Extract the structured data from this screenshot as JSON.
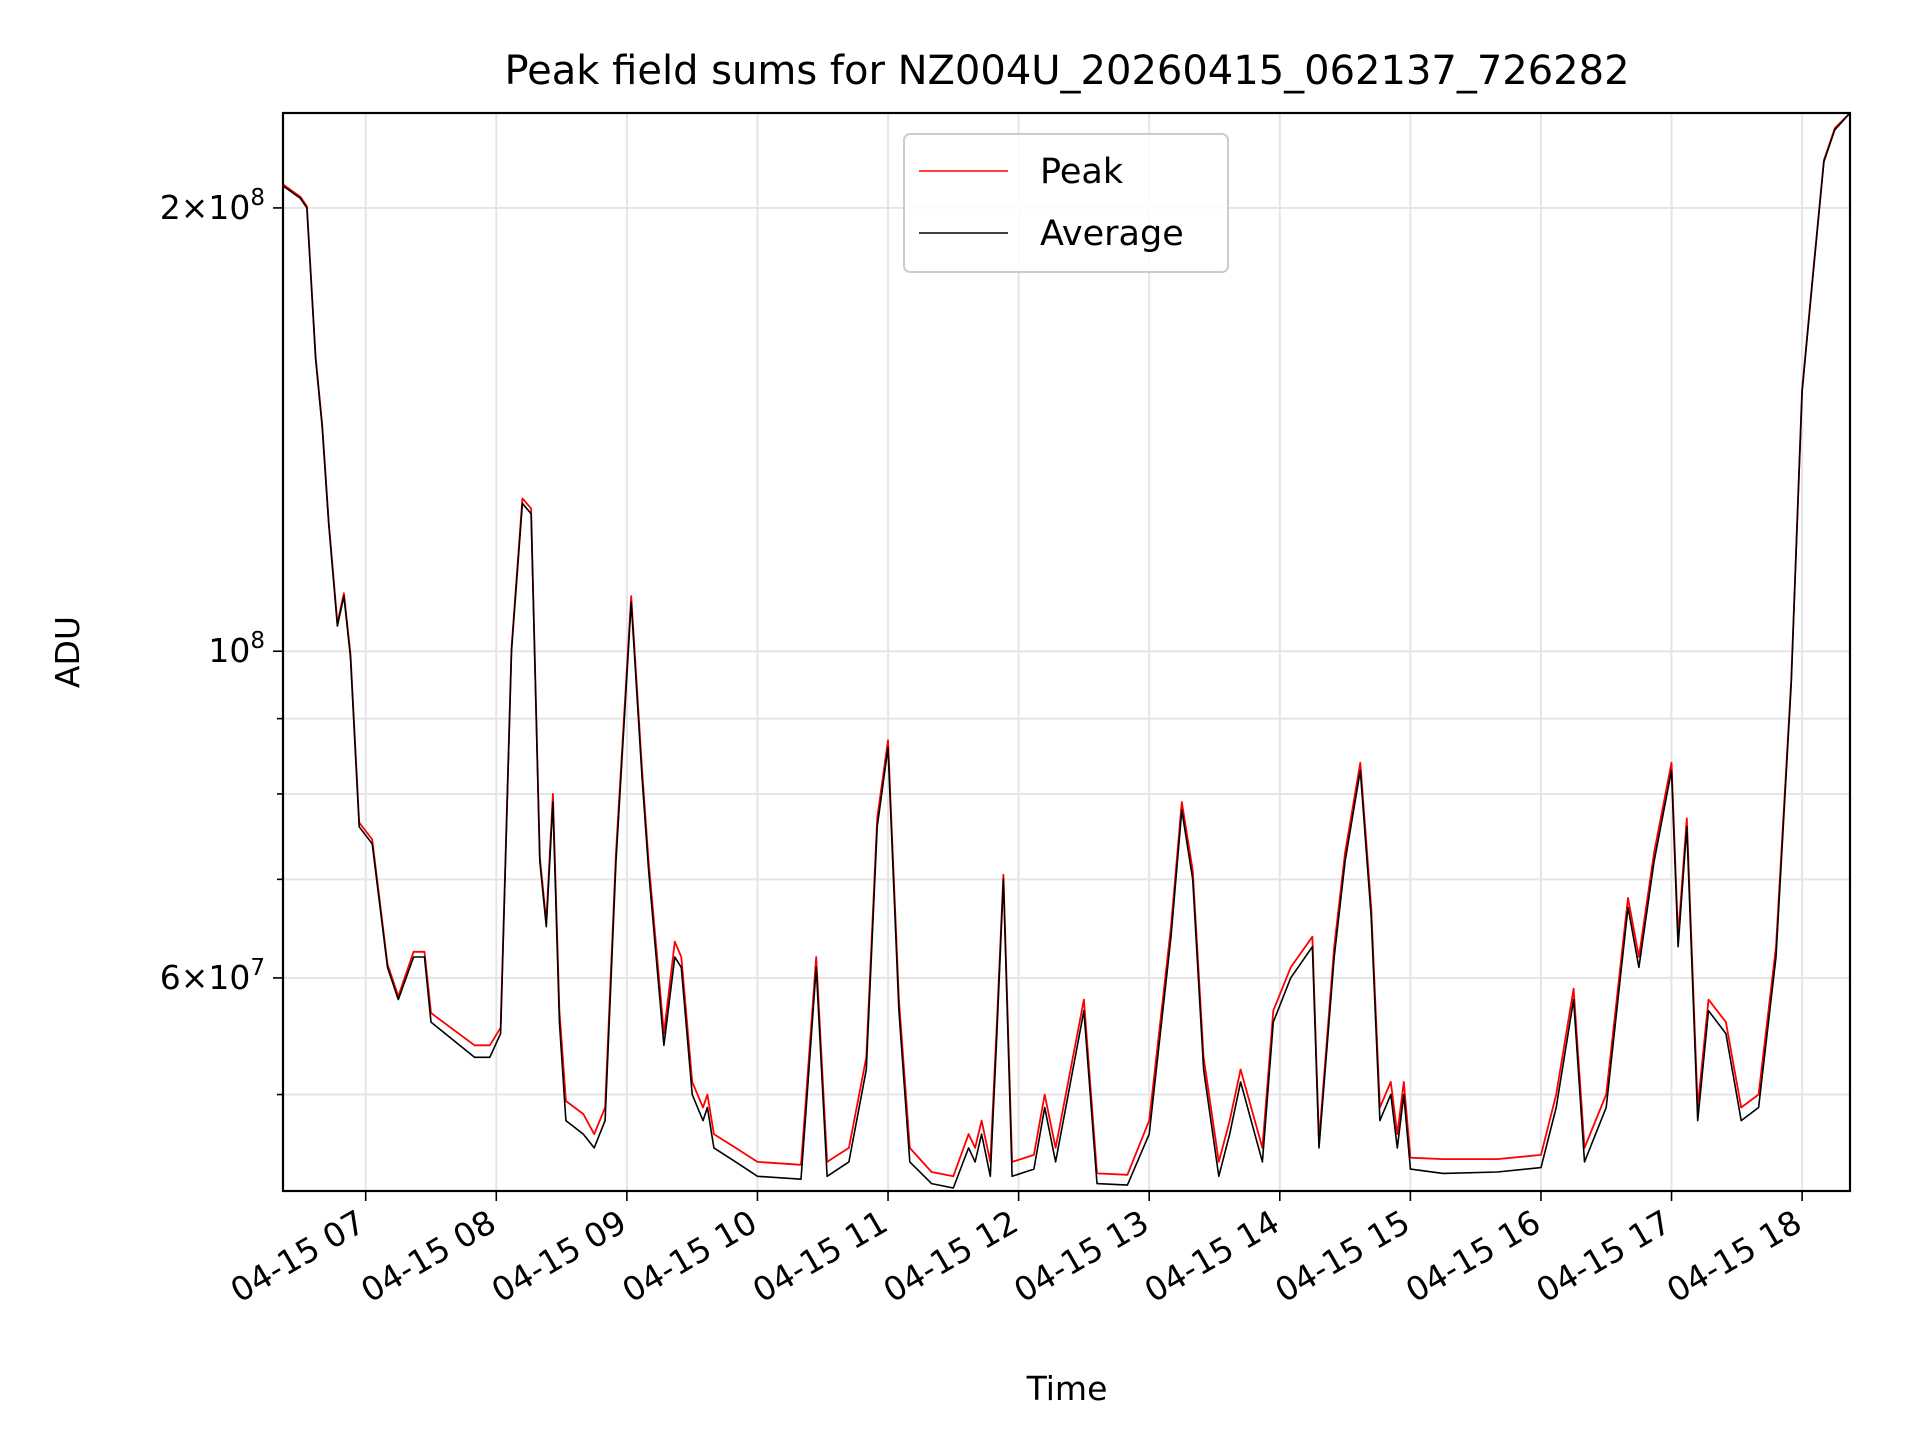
{
  "chart_data": {
    "type": "line",
    "title": "Peak field sums for NZ004U_20260415_062137_726282",
    "xlabel": "Time",
    "ylabel": "ADU",
    "y_scale": "log",
    "ylim": [
      43000000,
      232000000
    ],
    "xlim": [
      "2026-04-15 06:22",
      "2026-04-15 18:22"
    ],
    "grid": true,
    "legend_position": "upper center",
    "x_tick_labels": [
      "04-15 07",
      "04-15 08",
      "04-15 09",
      "04-15 10",
      "04-15 11",
      "04-15 12",
      "04-15 13",
      "04-15 14",
      "04-15 15",
      "04-15 16",
      "04-15 17",
      "04-15 18"
    ],
    "x_ticks": [
      "2026-04-15 07:00",
      "2026-04-15 08:00",
      "2026-04-15 09:00",
      "2026-04-15 10:00",
      "2026-04-15 11:00",
      "2026-04-15 12:00",
      "2026-04-15 13:00",
      "2026-04-15 14:00",
      "2026-04-15 15:00",
      "2026-04-15 16:00",
      "2026-04-15 17:00",
      "2026-04-15 18:00"
    ],
    "y_major_ticks": [
      {
        "value": 200000000,
        "mantissa": "2",
        "exp": "8"
      },
      {
        "value": 100000000,
        "mantissa": "",
        "exp": "8"
      },
      {
        "value": 60000000,
        "mantissa": "6",
        "exp": "7"
      }
    ],
    "y_minor_ticks": [
      50000000,
      70000000,
      80000000,
      90000000
    ],
    "colors": {
      "Peak": "#ff0000",
      "Average": "#000000"
    },
    "series": [
      {
        "name": "Average",
        "points": [
          [
            "2026-04-15 06:22",
            207000000
          ],
          [
            "2026-04-15 06:26",
            205000000
          ],
          [
            "2026-04-15 06:30",
            203000000
          ],
          [
            "2026-04-15 06:33",
            200000000
          ],
          [
            "2026-04-15 06:37",
            158000000
          ],
          [
            "2026-04-15 06:40",
            142000000
          ],
          [
            "2026-04-15 06:43",
            122000000
          ],
          [
            "2026-04-15 06:47",
            104000000
          ],
          [
            "2026-04-15 06:50",
            109000000
          ],
          [
            "2026-04-15 06:53",
            99000000
          ],
          [
            "2026-04-15 06:57",
            76000000
          ],
          [
            "2026-04-15 07:03",
            74000000
          ],
          [
            "2026-04-15 07:10",
            61000000
          ],
          [
            "2026-04-15 07:15",
            58000000
          ],
          [
            "2026-04-15 07:22",
            62000000
          ],
          [
            "2026-04-15 07:27",
            62000000
          ],
          [
            "2026-04-15 07:30",
            56000000
          ],
          [
            "2026-04-15 07:50",
            53000000
          ],
          [
            "2026-04-15 07:57",
            53000000
          ],
          [
            "2026-04-15 08:02",
            55000000
          ],
          [
            "2026-04-15 08:07",
            100000000
          ],
          [
            "2026-04-15 08:12",
            126000000
          ],
          [
            "2026-04-15 08:16",
            124000000
          ],
          [
            "2026-04-15 08:20",
            72000000
          ],
          [
            "2026-04-15 08:23",
            65000000
          ],
          [
            "2026-04-15 08:26",
            79000000
          ],
          [
            "2026-04-15 08:29",
            56000000
          ],
          [
            "2026-04-15 08:32",
            48000000
          ],
          [
            "2026-04-15 08:40",
            47000000
          ],
          [
            "2026-04-15 08:45",
            46000000
          ],
          [
            "2026-04-15 08:50",
            48000000
          ],
          [
            "2026-04-15 08:55",
            72000000
          ],
          [
            "2026-04-15 09:02",
            108000000
          ],
          [
            "2026-04-15 09:07",
            82000000
          ],
          [
            "2026-04-15 09:10",
            71000000
          ],
          [
            "2026-04-15 09:17",
            54000000
          ],
          [
            "2026-04-15 09:22",
            62000000
          ],
          [
            "2026-04-15 09:25",
            61000000
          ],
          [
            "2026-04-15 09:30",
            50000000
          ],
          [
            "2026-04-15 09:35",
            48000000
          ],
          [
            "2026-04-15 09:37",
            49000000
          ],
          [
            "2026-04-15 09:40",
            46000000
          ],
          [
            "2026-04-15 09:50",
            45000000
          ],
          [
            "2026-04-15 10:00",
            44000000
          ],
          [
            "2026-04-15 10:20",
            43800000
          ],
          [
            "2026-04-15 10:22",
            48000000
          ],
          [
            "2026-04-15 10:27",
            61000000
          ],
          [
            "2026-04-15 10:32",
            44000000
          ],
          [
            "2026-04-15 10:42",
            45000000
          ],
          [
            "2026-04-15 10:50",
            52000000
          ],
          [
            "2026-04-15 10:55",
            76000000
          ],
          [
            "2026-04-15 11:00",
            86000000
          ],
          [
            "2026-04-15 11:05",
            57000000
          ],
          [
            "2026-04-15 11:10",
            45000000
          ],
          [
            "2026-04-15 11:20",
            43500000
          ],
          [
            "2026-04-15 11:30",
            43200000
          ],
          [
            "2026-04-15 11:37",
            46000000
          ],
          [
            "2026-04-15 11:40",
            45000000
          ],
          [
            "2026-04-15 11:43",
            47000000
          ],
          [
            "2026-04-15 11:47",
            44000000
          ],
          [
            "2026-04-15 11:50",
            55000000
          ],
          [
            "2026-04-15 11:53",
            70000000
          ],
          [
            "2026-04-15 11:57",
            44000000
          ],
          [
            "2026-04-15 12:07",
            44500000
          ],
          [
            "2026-04-15 12:12",
            49000000
          ],
          [
            "2026-04-15 12:17",
            45000000
          ],
          [
            "2026-04-15 12:30",
            57000000
          ],
          [
            "2026-04-15 12:36",
            43500000
          ],
          [
            "2026-04-15 12:50",
            43400000
          ],
          [
            "2026-04-15 13:00",
            47000000
          ],
          [
            "2026-04-15 13:10",
            64000000
          ],
          [
            "2026-04-15 13:15",
            78000000
          ],
          [
            "2026-04-15 13:20",
            70000000
          ],
          [
            "2026-04-15 13:25",
            52000000
          ],
          [
            "2026-04-15 13:32",
            44000000
          ],
          [
            "2026-04-15 13:37",
            47000000
          ],
          [
            "2026-04-15 13:42",
            51000000
          ],
          [
            "2026-04-15 13:52",
            45000000
          ],
          [
            "2026-04-15 13:57",
            56000000
          ],
          [
            "2026-04-15 14:05",
            60000000
          ],
          [
            "2026-04-15 14:15",
            63000000
          ],
          [
            "2026-04-15 14:18",
            46000000
          ],
          [
            "2026-04-15 14:25",
            62000000
          ],
          [
            "2026-04-15 14:30",
            72000000
          ],
          [
            "2026-04-15 14:37",
            83000000
          ],
          [
            "2026-04-15 14:42",
            66000000
          ],
          [
            "2026-04-15 14:46",
            48000000
          ],
          [
            "2026-04-15 14:51",
            50000000
          ],
          [
            "2026-04-15 14:54",
            46000000
          ],
          [
            "2026-04-15 14:57",
            50000000
          ],
          [
            "2026-04-15 15:00",
            44500000
          ],
          [
            "2026-04-15 15:15",
            44200000
          ],
          [
            "2026-04-15 15:40",
            44300000
          ],
          [
            "2026-04-15 16:00",
            44600000
          ],
          [
            "2026-04-15 16:07",
            49000000
          ],
          [
            "2026-04-15 16:15",
            58000000
          ],
          [
            "2026-04-15 16:20",
            45000000
          ],
          [
            "2026-04-15 16:30",
            49000000
          ],
          [
            "2026-04-15 16:40",
            67000000
          ],
          [
            "2026-04-15 16:45",
            61000000
          ],
          [
            "2026-04-15 16:52",
            72000000
          ],
          [
            "2026-04-15 17:00",
            83000000
          ],
          [
            "2026-04-15 17:03",
            63000000
          ],
          [
            "2026-04-15 17:07",
            76000000
          ],
          [
            "2026-04-15 17:12",
            48000000
          ],
          [
            "2026-04-15 17:17",
            57000000
          ],
          [
            "2026-04-15 17:25",
            55000000
          ],
          [
            "2026-04-15 17:32",
            48000000
          ],
          [
            "2026-04-15 17:40",
            49000000
          ],
          [
            "2026-04-15 17:48",
            62000000
          ],
          [
            "2026-04-15 17:55",
            95000000
          ],
          [
            "2026-04-15 18:00",
            150000000
          ],
          [
            "2026-04-15 18:05",
            180000000
          ],
          [
            "2026-04-15 18:10",
            215000000
          ],
          [
            "2026-04-15 18:15",
            226000000
          ],
          [
            "2026-04-15 18:22",
            232000000
          ]
        ]
      },
      {
        "name": "Peak",
        "points": [
          [
            "2026-04-15 06:22",
            207500000
          ],
          [
            "2026-04-15 06:26",
            205500000
          ],
          [
            "2026-04-15 06:30",
            203500000
          ],
          [
            "2026-04-15 06:33",
            200500000
          ],
          [
            "2026-04-15 06:37",
            158500000
          ],
          [
            "2026-04-15 06:40",
            142500000
          ],
          [
            "2026-04-15 06:43",
            122500000
          ],
          [
            "2026-04-15 06:47",
            104500000
          ],
          [
            "2026-04-15 06:50",
            109500000
          ],
          [
            "2026-04-15 06:53",
            99500000
          ],
          [
            "2026-04-15 06:57",
            76500000
          ],
          [
            "2026-04-15 07:03",
            74500000
          ],
          [
            "2026-04-15 07:10",
            61300000
          ],
          [
            "2026-04-15 07:15",
            58300000
          ],
          [
            "2026-04-15 07:22",
            62500000
          ],
          [
            "2026-04-15 07:27",
            62500000
          ],
          [
            "2026-04-15 07:30",
            56800000
          ],
          [
            "2026-04-15 07:50",
            54000000
          ],
          [
            "2026-04-15 07:57",
            54000000
          ],
          [
            "2026-04-15 08:02",
            55500000
          ],
          [
            "2026-04-15 08:07",
            100500000
          ],
          [
            "2026-04-15 08:12",
            127000000
          ],
          [
            "2026-04-15 08:16",
            125000000
          ],
          [
            "2026-04-15 08:20",
            72500000
          ],
          [
            "2026-04-15 08:23",
            65500000
          ],
          [
            "2026-04-15 08:26",
            80000000
          ],
          [
            "2026-04-15 08:29",
            57000000
          ],
          [
            "2026-04-15 08:32",
            49500000
          ],
          [
            "2026-04-15 08:40",
            48500000
          ],
          [
            "2026-04-15 08:45",
            47000000
          ],
          [
            "2026-04-15 08:50",
            49000000
          ],
          [
            "2026-04-15 08:55",
            73000000
          ],
          [
            "2026-04-15 09:02",
            109000000
          ],
          [
            "2026-04-15 09:07",
            83000000
          ],
          [
            "2026-04-15 09:10",
            72000000
          ],
          [
            "2026-04-15 09:17",
            55000000
          ],
          [
            "2026-04-15 09:22",
            63500000
          ],
          [
            "2026-04-15 09:25",
            62000000
          ],
          [
            "2026-04-15 09:30",
            51000000
          ],
          [
            "2026-04-15 09:35",
            49000000
          ],
          [
            "2026-04-15 09:37",
            50000000
          ],
          [
            "2026-04-15 09:40",
            47000000
          ],
          [
            "2026-04-15 09:50",
            46000000
          ],
          [
            "2026-04-15 10:00",
            45000000
          ],
          [
            "2026-04-15 10:20",
            44800000
          ],
          [
            "2026-04-15 10:22",
            49000000
          ],
          [
            "2026-04-15 10:27",
            62000000
          ],
          [
            "2026-04-15 10:32",
            45000000
          ],
          [
            "2026-04-15 10:42",
            46000000
          ],
          [
            "2026-04-15 10:50",
            53000000
          ],
          [
            "2026-04-15 10:55",
            77000000
          ],
          [
            "2026-04-15 11:00",
            87000000
          ],
          [
            "2026-04-15 11:05",
            58000000
          ],
          [
            "2026-04-15 11:10",
            46000000
          ],
          [
            "2026-04-15 11:20",
            44300000
          ],
          [
            "2026-04-15 11:30",
            44000000
          ],
          [
            "2026-04-15 11:37",
            47000000
          ],
          [
            "2026-04-15 11:40",
            46000000
          ],
          [
            "2026-04-15 11:43",
            48000000
          ],
          [
            "2026-04-15 11:47",
            45000000
          ],
          [
            "2026-04-15 11:50",
            56000000
          ],
          [
            "2026-04-15 11:53",
            70500000
          ],
          [
            "2026-04-15 11:57",
            45000000
          ],
          [
            "2026-04-15 12:07",
            45500000
          ],
          [
            "2026-04-15 12:12",
            50000000
          ],
          [
            "2026-04-15 12:17",
            46000000
          ],
          [
            "2026-04-15 12:30",
            58000000
          ],
          [
            "2026-04-15 12:36",
            44200000
          ],
          [
            "2026-04-15 12:50",
            44100000
          ],
          [
            "2026-04-15 13:00",
            48000000
          ],
          [
            "2026-04-15 13:10",
            65000000
          ],
          [
            "2026-04-15 13:15",
            79000000
          ],
          [
            "2026-04-15 13:20",
            71000000
          ],
          [
            "2026-04-15 13:25",
            53000000
          ],
          [
            "2026-04-15 13:32",
            45000000
          ],
          [
            "2026-04-15 13:37",
            48000000
          ],
          [
            "2026-04-15 13:42",
            52000000
          ],
          [
            "2026-04-15 13:52",
            46000000
          ],
          [
            "2026-04-15 13:57",
            57000000
          ],
          [
            "2026-04-15 14:05",
            61000000
          ],
          [
            "2026-04-15 14:15",
            64000000
          ],
          [
            "2026-04-15 14:18",
            46500000
          ],
          [
            "2026-04-15 14:25",
            63000000
          ],
          [
            "2026-04-15 14:30",
            73000000
          ],
          [
            "2026-04-15 14:37",
            84000000
          ],
          [
            "2026-04-15 14:42",
            67000000
          ],
          [
            "2026-04-15 14:46",
            49000000
          ],
          [
            "2026-04-15 14:51",
            51000000
          ],
          [
            "2026-04-15 14:54",
            47000000
          ],
          [
            "2026-04-15 14:57",
            51000000
          ],
          [
            "2026-04-15 15:00",
            45300000
          ],
          [
            "2026-04-15 15:15",
            45200000
          ],
          [
            "2026-04-15 15:40",
            45200000
          ],
          [
            "2026-04-15 16:00",
            45500000
          ],
          [
            "2026-04-15 16:07",
            50000000
          ],
          [
            "2026-04-15 16:15",
            59000000
          ],
          [
            "2026-04-15 16:20",
            46000000
          ],
          [
            "2026-04-15 16:30",
            50000000
          ],
          [
            "2026-04-15 16:40",
            68000000
          ],
          [
            "2026-04-15 16:45",
            62000000
          ],
          [
            "2026-04-15 16:52",
            73000000
          ],
          [
            "2026-04-15 17:00",
            84000000
          ],
          [
            "2026-04-15 17:03",
            64000000
          ],
          [
            "2026-04-15 17:07",
            77000000
          ],
          [
            "2026-04-15 17:12",
            49000000
          ],
          [
            "2026-04-15 17:17",
            58000000
          ],
          [
            "2026-04-15 17:25",
            56000000
          ],
          [
            "2026-04-15 17:32",
            49000000
          ],
          [
            "2026-04-15 17:40",
            50000000
          ],
          [
            "2026-04-15 17:48",
            63000000
          ],
          [
            "2026-04-15 17:55",
            95500000
          ],
          [
            "2026-04-15 18:00",
            150500000
          ],
          [
            "2026-04-15 18:05",
            180500000
          ],
          [
            "2026-04-15 18:10",
            215500000
          ],
          [
            "2026-04-15 18:15",
            226500000
          ],
          [
            "2026-04-15 18:22",
            232000000
          ]
        ]
      }
    ]
  }
}
